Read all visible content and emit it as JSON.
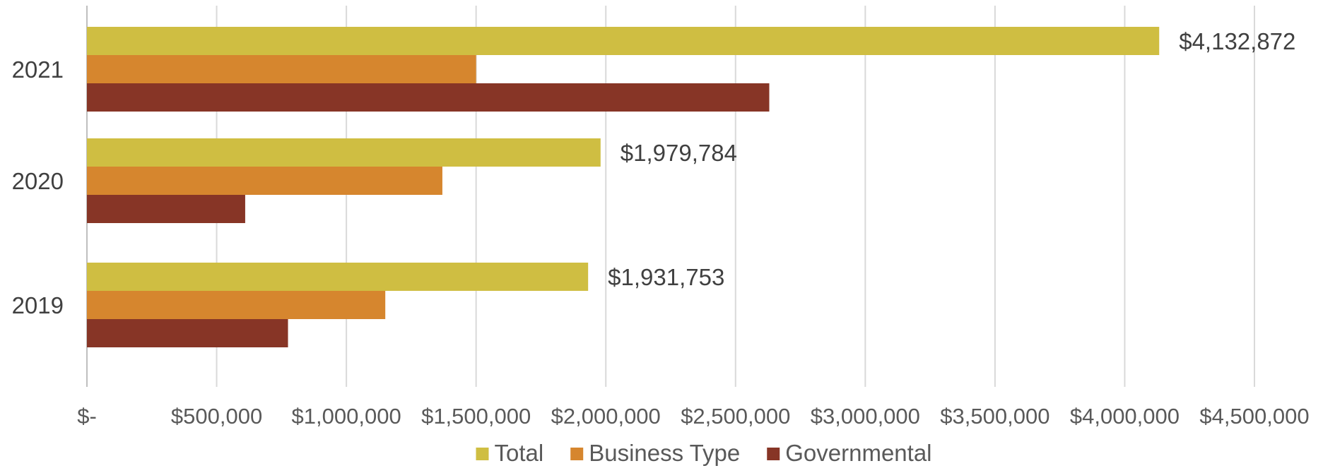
{
  "chart_data": {
    "type": "bar",
    "orientation": "horizontal",
    "categories": [
      "2021",
      "2020",
      "2019"
    ],
    "series": [
      {
        "name": "Total",
        "color": "#CFBE42",
        "values": [
          4132872,
          1979784,
          1931753
        ]
      },
      {
        "name": "Business Type",
        "color": "#D6862E",
        "values": [
          1500000,
          1370000,
          1150000
        ]
      },
      {
        "name": "Governmental",
        "color": "#873526",
        "values": [
          2630000,
          610000,
          775000
        ]
      }
    ],
    "data_labels": [
      "$4,132,872",
      "$1,979,784",
      "$1,931,753"
    ],
    "xlim": [
      0,
      4500000
    ],
    "x_ticks": [
      0,
      500000,
      1000000,
      1500000,
      2000000,
      2500000,
      3000000,
      3500000,
      4000000,
      4500000
    ],
    "x_tick_labels": [
      "$-",
      "$500,000",
      "$1,000,000",
      "$1,500,000",
      "$2,000,000",
      "$2,500,000",
      "$3,000,000",
      "$3,500,000",
      "$4,000,000",
      "$4,500,000"
    ],
    "grid": true,
    "legend": "bottom",
    "title": "",
    "xlabel": "",
    "ylabel": ""
  }
}
